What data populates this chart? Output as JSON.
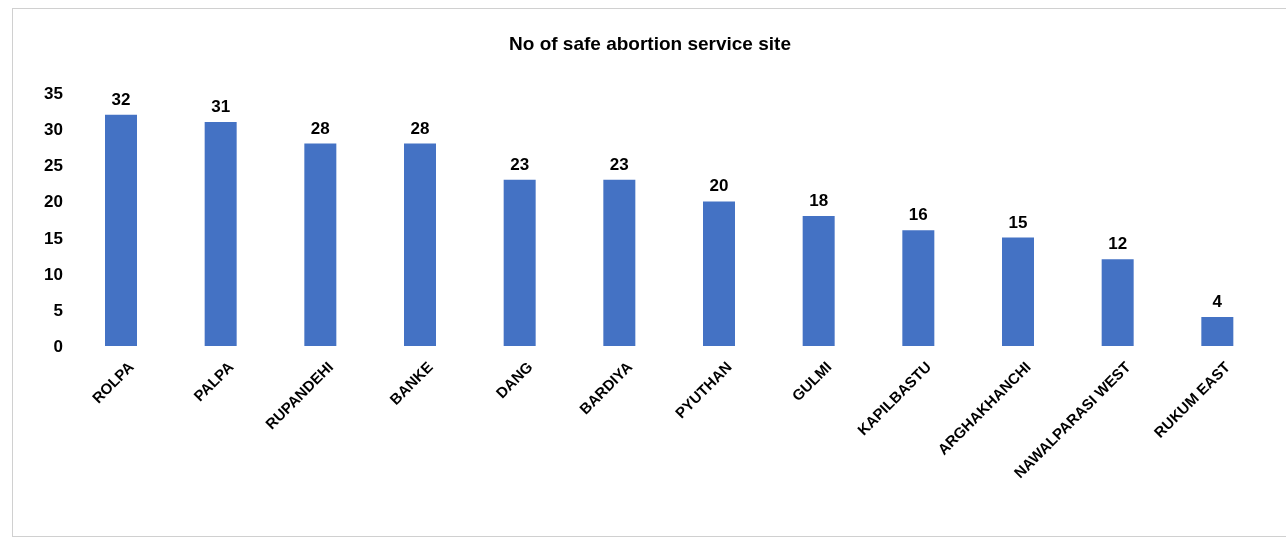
{
  "chart_data": {
    "type": "bar",
    "title": "No of safe abortion service site",
    "categories": [
      "ROLPA",
      "PALPA",
      "RUPANDEHI",
      "BANKE",
      "DANG",
      "BARDIYA",
      "PYUTHAN",
      "GULMI",
      "KAPILBASTU",
      "ARGHAKHANCHI",
      "NAWALPARASI WEST",
      "RUKUM EAST"
    ],
    "values": [
      32,
      31,
      28,
      28,
      23,
      23,
      20,
      18,
      16,
      15,
      12,
      4
    ],
    "color": "#4472c4",
    "ylim": [
      0,
      35
    ],
    "yticks": [
      0,
      5,
      10,
      15,
      20,
      25,
      30,
      35
    ],
    "grid": false,
    "data_labels": true,
    "legend": false
  }
}
